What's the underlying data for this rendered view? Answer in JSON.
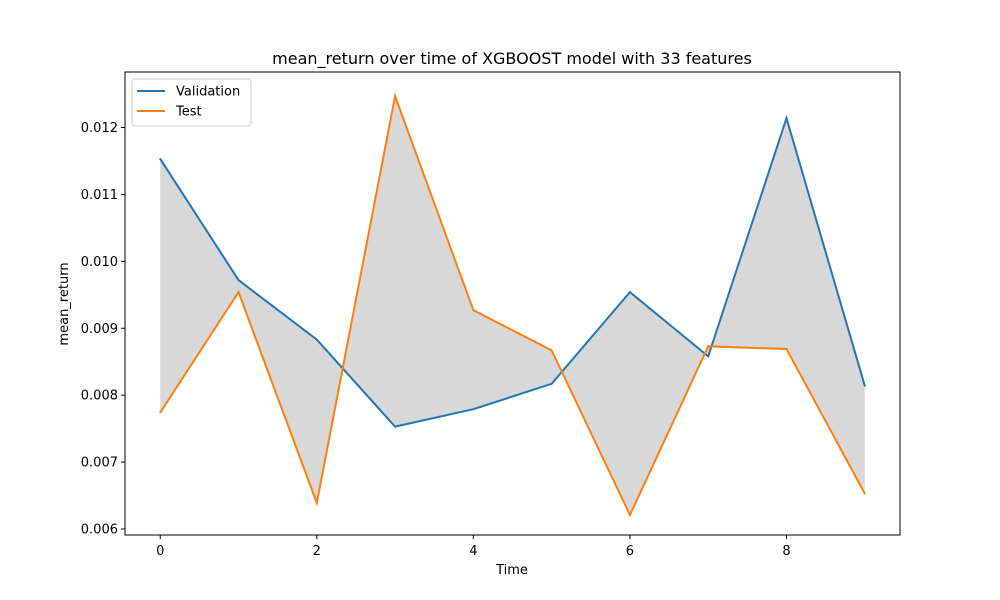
{
  "chart_data": {
    "type": "line",
    "title": "mean_return over time of XGBOOST model with 33 features",
    "xlabel": "Time",
    "ylabel": "mean_return",
    "x": [
      0,
      1,
      2,
      3,
      4,
      5,
      6,
      7,
      8,
      9
    ],
    "xlim": [
      -0.45,
      9.45
    ],
    "ylim": [
      0.00591,
      0.01283
    ],
    "xticks": [
      0,
      2,
      4,
      6,
      8
    ],
    "xtick_labels": [
      "0",
      "2",
      "4",
      "6",
      "8"
    ],
    "yticks": [
      0.006,
      0.007,
      0.008,
      0.009,
      0.01,
      0.011,
      0.012
    ],
    "ytick_labels": [
      "0.006",
      "0.007",
      "0.008",
      "0.009",
      "0.010",
      "0.011",
      "0.012"
    ],
    "grid": false,
    "legend_position": "top-left",
    "fill_between": {
      "color": "#d8d8d8"
    },
    "series": [
      {
        "name": "Validation",
        "color": "#1f77b4",
        "values": [
          0.01153,
          0.00972,
          0.00883,
          0.00753,
          0.00779,
          0.00817,
          0.00954,
          0.00858,
          0.01214,
          0.00814
        ]
      },
      {
        "name": "Test",
        "color": "#ff7f0e",
        "values": [
          0.00774,
          0.00954,
          0.00639,
          0.01247,
          0.00927,
          0.00867,
          0.00621,
          0.00873,
          0.00869,
          0.00653
        ]
      }
    ]
  }
}
